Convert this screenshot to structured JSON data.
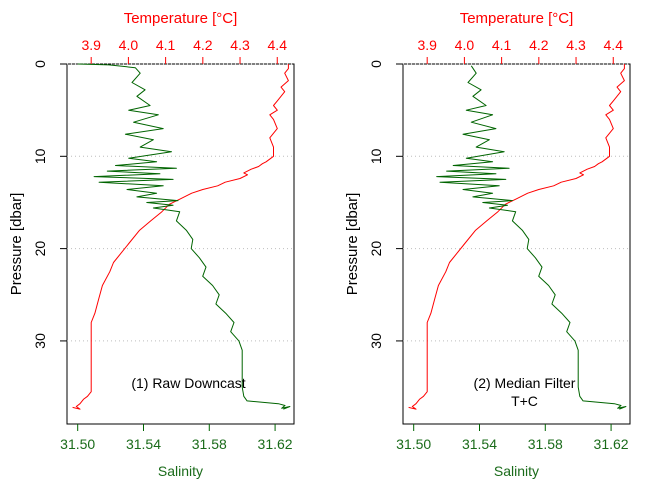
{
  "colors": {
    "temperature": "#ff0000",
    "salinity": "#006400",
    "axis": "#000000",
    "grid": "#bebebe"
  },
  "chart_data": [
    {
      "type": "line",
      "annotation": [
        "(1) Raw Downcast"
      ],
      "top_axis": {
        "label": "Temperature [°C]",
        "ticks": [
          "3.9",
          "4.0",
          "4.1",
          "4.2",
          "4.3",
          "4.4"
        ],
        "range": [
          3.835,
          4.445
        ]
      },
      "bottom_axis": {
        "label": "Salinity",
        "ticks": [
          "31.50",
          "31.54",
          "31.58",
          "31.62"
        ],
        "range": [
          31.4935,
          31.6315
        ]
      },
      "y_axis": {
        "label": "Pressure [dbar]",
        "ticks": [
          "0",
          "10",
          "20",
          "30"
        ],
        "range": [
          0,
          39
        ],
        "reversed": true
      },
      "grid": "horizontal dotted",
      "series": [
        {
          "variable": "temperature",
          "x": [
            4.43,
            4.43,
            4.42,
            4.43,
            4.41,
            4.42,
            4.41,
            4.4,
            4.39,
            4.4,
            4.38,
            4.39,
            4.4,
            4.38,
            4.39,
            4.39,
            4.37,
            4.36,
            4.35,
            4.33,
            4.31,
            4.32,
            4.3,
            4.26,
            4.24,
            4.2,
            4.17,
            4.14,
            4.11,
            4.09,
            4.06,
            4.03,
            4.0,
            3.98,
            3.96,
            3.95,
            3.93,
            3.92,
            3.91,
            3.9,
            3.9,
            3.9,
            3.9,
            3.9,
            3.9,
            3.89,
            3.88,
            3.87,
            3.86,
            3.87,
            3.85
          ],
          "y": [
            0.0,
            0.5,
            1.0,
            1.8,
            2.5,
            3.0,
            3.5,
            4.0,
            4.5,
            5.0,
            5.5,
            6.0,
            7.0,
            8.0,
            9.0,
            10.0,
            10.6,
            10.8,
            11.1,
            11.4,
            11.8,
            12.0,
            12.4,
            12.8,
            13.2,
            13.6,
            14.0,
            14.6,
            15.2,
            16.0,
            17.0,
            18.0,
            19.5,
            20.5,
            21.5,
            22.5,
            24.0,
            25.5,
            27.0,
            28.0,
            28.5,
            30.0,
            32.0,
            34.0,
            35.5,
            36.0,
            36.3,
            36.8,
            37.1,
            37.4,
            37.2
          ]
        },
        {
          "variable": "salinity",
          "x": [
            31.5,
            31.519,
            31.535,
            31.538,
            31.533,
            31.541,
            31.536,
            31.544,
            31.531,
            31.549,
            31.534,
            31.552,
            31.529,
            31.546,
            31.538,
            31.557,
            31.531,
            31.548,
            31.523,
            31.56,
            31.518,
            31.55,
            31.51,
            31.558,
            31.513,
            31.552,
            31.53,
            31.548,
            31.536,
            31.561,
            31.542,
            31.558,
            31.546,
            31.562,
            31.56,
            31.566,
            31.57,
            31.569,
            31.574,
            31.578,
            31.576,
            31.582,
            31.586,
            31.584,
            31.59,
            31.595,
            31.593,
            31.598,
            31.6,
            31.6,
            31.6,
            31.601,
            31.603,
            31.622,
            31.626,
            31.624,
            31.629,
            31.625
          ],
          "y": [
            0.0,
            0.1,
            0.4,
            1.0,
            2.0,
            2.8,
            3.5,
            4.5,
            5.0,
            5.5,
            6.3,
            7.0,
            7.6,
            8.2,
            9.0,
            9.5,
            10.2,
            10.6,
            11.0,
            11.3,
            11.6,
            11.9,
            12.2,
            12.5,
            12.8,
            13.2,
            13.6,
            14.0,
            14.4,
            14.8,
            15.0,
            15.3,
            15.6,
            16.0,
            17.0,
            18.0,
            19.0,
            20.0,
            21.0,
            22.0,
            23.0,
            24.0,
            25.0,
            26.0,
            27.0,
            28.0,
            29.0,
            30.0,
            31.0,
            33.0,
            35.0,
            36.0,
            36.5,
            36.8,
            37.0,
            37.3,
            37.1,
            37.4
          ]
        }
      ]
    },
    {
      "type": "line",
      "annotation": [
        "(2) Median Filter",
        "T+C"
      ],
      "top_axis": {
        "label": "Temperature [°C]",
        "ticks": [
          "3.9",
          "4.0",
          "4.1",
          "4.2",
          "4.3",
          "4.4"
        ],
        "range": [
          3.835,
          4.445
        ]
      },
      "bottom_axis": {
        "label": "Salinity",
        "ticks": [
          "31.50",
          "31.54",
          "31.58",
          "31.62"
        ],
        "range": [
          31.4935,
          31.6315
        ]
      },
      "y_axis": {
        "label": "Pressure [dbar]",
        "ticks": [
          "0",
          "10",
          "20",
          "30"
        ],
        "range": [
          0,
          39
        ],
        "reversed": true
      },
      "grid": "horizontal dotted",
      "series": [
        {
          "variable": "temperature",
          "x": [
            4.43,
            4.43,
            4.42,
            4.43,
            4.41,
            4.42,
            4.41,
            4.4,
            4.39,
            4.4,
            4.38,
            4.39,
            4.4,
            4.38,
            4.39,
            4.39,
            4.37,
            4.36,
            4.35,
            4.33,
            4.31,
            4.32,
            4.3,
            4.26,
            4.24,
            4.2,
            4.17,
            4.14,
            4.11,
            4.09,
            4.06,
            4.03,
            4.0,
            3.98,
            3.96,
            3.95,
            3.93,
            3.92,
            3.91,
            3.9,
            3.9,
            3.9,
            3.9,
            3.9,
            3.9,
            3.89,
            3.88,
            3.87,
            3.86,
            3.87,
            3.85
          ],
          "y": [
            0.0,
            0.5,
            1.0,
            1.8,
            2.5,
            3.0,
            3.5,
            4.0,
            4.5,
            5.0,
            5.5,
            6.0,
            7.0,
            8.0,
            9.0,
            10.0,
            10.6,
            10.8,
            11.1,
            11.4,
            11.8,
            12.0,
            12.4,
            12.8,
            13.2,
            13.6,
            14.0,
            14.6,
            15.2,
            16.0,
            17.0,
            18.0,
            19.5,
            20.5,
            21.5,
            22.5,
            24.0,
            25.5,
            27.0,
            28.0,
            28.5,
            30.0,
            32.0,
            34.0,
            35.5,
            36.0,
            36.3,
            36.8,
            37.1,
            37.4,
            37.2
          ]
        },
        {
          "variable": "salinity",
          "x": [
            31.535,
            31.538,
            31.533,
            31.541,
            31.536,
            31.544,
            31.532,
            31.548,
            31.535,
            31.55,
            31.53,
            31.546,
            31.538,
            31.555,
            31.532,
            31.548,
            31.524,
            31.558,
            31.52,
            31.55,
            31.514,
            31.556,
            31.516,
            31.552,
            31.53,
            31.548,
            31.536,
            31.56,
            31.542,
            31.557,
            31.546,
            31.562,
            31.56,
            31.566,
            31.57,
            31.569,
            31.574,
            31.578,
            31.576,
            31.582,
            31.586,
            31.584,
            31.59,
            31.595,
            31.593,
            31.598,
            31.6,
            31.6,
            31.6,
            31.601,
            31.603,
            31.622,
            31.626,
            31.624,
            31.629,
            31.625
          ],
          "y": [
            0.2,
            1.0,
            2.0,
            2.8,
            3.5,
            4.5,
            5.0,
            5.5,
            6.3,
            7.0,
            7.6,
            8.2,
            9.0,
            9.5,
            10.2,
            10.6,
            11.0,
            11.3,
            11.6,
            11.9,
            12.2,
            12.5,
            12.8,
            13.2,
            13.6,
            14.0,
            14.4,
            14.8,
            15.0,
            15.3,
            15.6,
            16.0,
            17.0,
            18.0,
            19.0,
            20.0,
            21.0,
            22.0,
            23.0,
            24.0,
            25.0,
            26.0,
            27.0,
            28.0,
            29.0,
            30.0,
            31.0,
            33.0,
            35.0,
            36.0,
            36.5,
            36.8,
            37.0,
            37.3,
            37.1,
            37.4
          ]
        }
      ]
    }
  ]
}
